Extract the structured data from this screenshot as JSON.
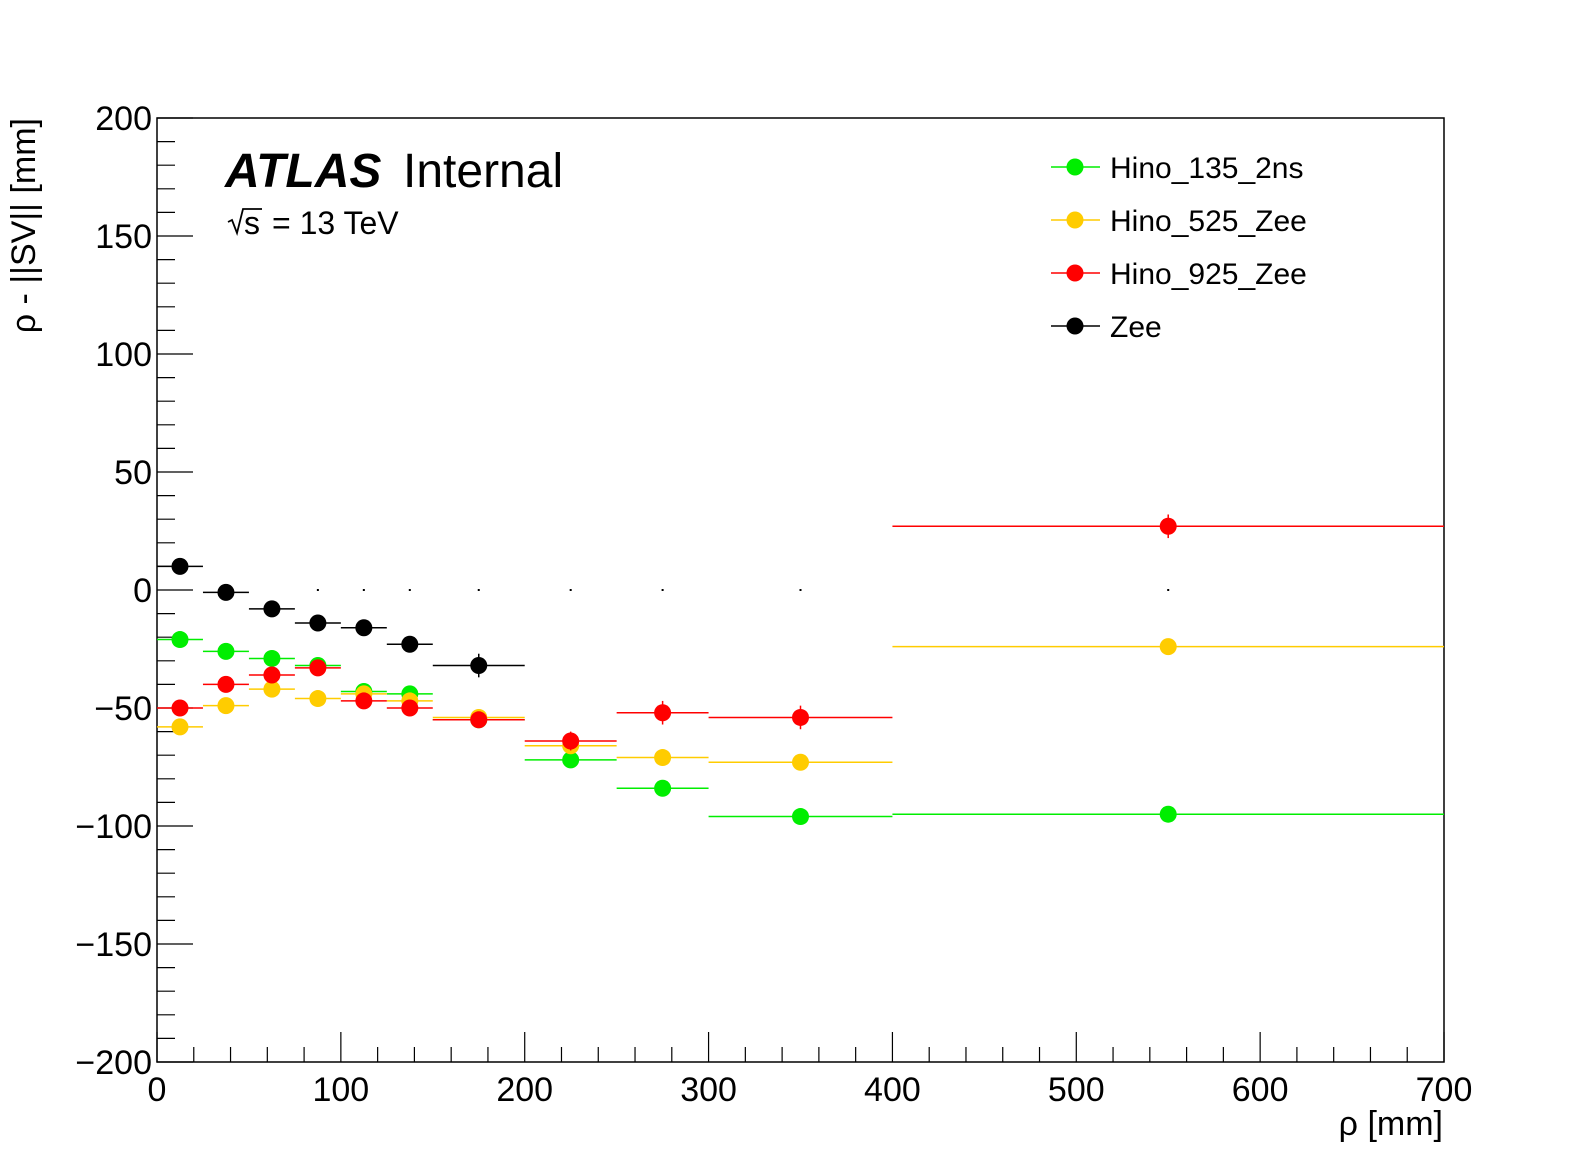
{
  "chart_data": {
    "type": "scatter",
    "xlabel": "ρ [mm]",
    "ylabel": "ρ - ||SV|| [mm]",
    "xlim": [
      0,
      700
    ],
    "ylim": [
      -200,
      200
    ],
    "x_ticks": [
      "0",
      "100",
      "200",
      "300",
      "400",
      "500",
      "600",
      "700"
    ],
    "y_ticks": [
      "−200",
      "−150",
      "−100",
      "−50",
      "0",
      "50",
      "100",
      "150",
      "200"
    ],
    "bins": [
      [
        0,
        25
      ],
      [
        25,
        50
      ],
      [
        50,
        75
      ],
      [
        75,
        100
      ],
      [
        100,
        125
      ],
      [
        125,
        150
      ],
      [
        150,
        200
      ],
      [
        200,
        250
      ],
      [
        250,
        300
      ],
      [
        300,
        400
      ],
      [
        400,
        700
      ]
    ],
    "x_centers": [
      12.5,
      37.5,
      62.5,
      87.5,
      112.5,
      137.5,
      175,
      225,
      275,
      350,
      550
    ],
    "annotation": {
      "experiment": "ATLAS",
      "status": "Internal",
      "energy_sqrt": "s",
      "energy_value": "= 13 TeV"
    },
    "legend_position": "top-right",
    "series": [
      {
        "name": "Hino_135_2ns",
        "color": "#00ee00",
        "values": [
          -21,
          -26,
          -29,
          -32,
          -43,
          -44,
          -55,
          -72,
          -84,
          -96,
          -95
        ],
        "errors": [
          1,
          1,
          1,
          1,
          1,
          1,
          1,
          1,
          1,
          1,
          1
        ]
      },
      {
        "name": "Hino_525_Zee",
        "color": "#ffcc00",
        "values": [
          -58,
          -49,
          -42,
          -46,
          -44,
          -47,
          -54,
          -66,
          -71,
          -73,
          -24
        ],
        "errors": [
          1,
          1,
          1,
          1,
          1,
          1,
          1,
          1,
          1,
          1,
          1
        ]
      },
      {
        "name": "Hino_925_Zee",
        "color": "#ff0000",
        "values": [
          -50,
          -40,
          -36,
          -33,
          -47,
          -50,
          -55,
          -64,
          -52,
          -54,
          27
        ],
        "errors": [
          2,
          2,
          2,
          2,
          2,
          3,
          3,
          4,
          5,
          5,
          5
        ]
      },
      {
        "name": "Zee",
        "color": "#000000",
        "values": [
          10,
          -1,
          -8,
          -14,
          -16,
          -23,
          -32,
          null,
          null,
          null,
          null
        ],
        "errors": [
          1,
          1,
          1,
          1,
          2,
          2,
          5,
          null,
          null,
          null,
          null
        ]
      }
    ],
    "empty_markers_x": [
      87.5,
      112.5,
      137.5,
      175,
      225,
      275,
      350,
      550
    ]
  }
}
